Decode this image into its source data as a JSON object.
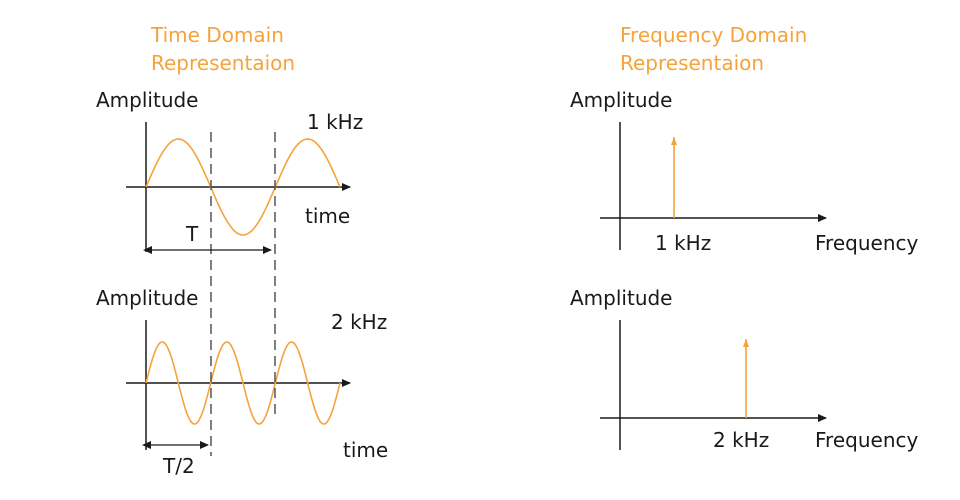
{
  "colors": {
    "accent": "#f5a33a",
    "ink": "#1a1a1a",
    "dash": "#555555"
  },
  "time_domain": {
    "title_line1": "Time Domain",
    "title_line2": "Representaion",
    "top": {
      "ylabel": "Amplitude",
      "freq_label": "1 kHz",
      "xlabel": "time",
      "period_label": "T",
      "cycles": 1.5
    },
    "bottom": {
      "ylabel": "Amplitude",
      "freq_label": "2 kHz",
      "xlabel": "time",
      "period_label": "T/2",
      "cycles": 3
    }
  },
  "frequency_domain": {
    "title_line1": "Frequency Domain",
    "title_line2": "Representaion",
    "top": {
      "ylabel": "Amplitude",
      "tick_label": "1 kHz",
      "xlabel": "Frequency"
    },
    "bottom": {
      "ylabel": "Amplitude",
      "tick_label": "2 kHz",
      "xlabel": "Frequency"
    }
  }
}
